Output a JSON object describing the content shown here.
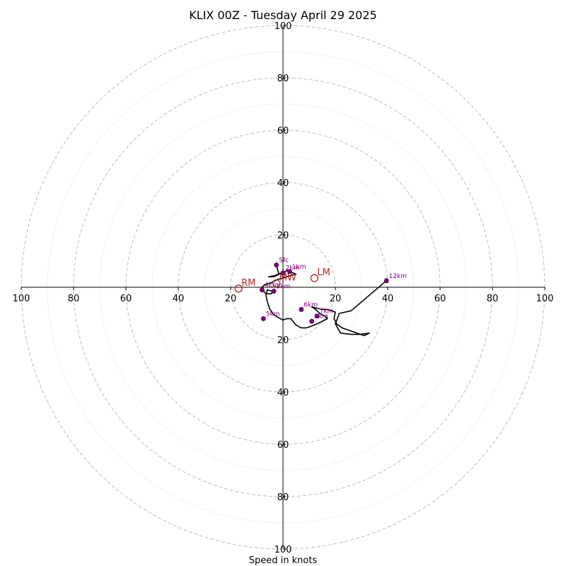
{
  "chart_data": {
    "type": "scatter",
    "subtype": "hodograph",
    "title": "KLIX 00Z - Tuesday April 29 2025",
    "xlabel": "Speed in knots",
    "ylabel": "",
    "xlim": [
      -100,
      100
    ],
    "ylim": [
      -100,
      100
    ],
    "grid": true,
    "ring_major": [
      20,
      40,
      60,
      80,
      100
    ],
    "ring_minor": [
      10,
      30,
      50,
      70,
      90
    ],
    "x_tick_labels": [
      "100",
      "80",
      "60",
      "40",
      "20",
      "20",
      "40",
      "60",
      "80",
      "100"
    ],
    "y_tick_labels": [
      "100",
      "80",
      "60",
      "40",
      "20",
      "20",
      "40",
      "60",
      "80",
      "100"
    ],
    "colors": {
      "trace": "#000000",
      "heights": "#800080",
      "motion": "#b22222",
      "grid": "#bbbbbb"
    },
    "trace": {
      "u": [
        -2.5,
        -2.2,
        -1.5,
        -3.5,
        -5.5,
        -3,
        -0.5,
        1,
        1.5,
        2.5,
        5,
        3,
        0,
        -2,
        -3,
        -5,
        -7,
        -8,
        -8,
        -7,
        -6,
        -4.5,
        -4,
        -6,
        -6.5,
        -6,
        -5,
        -3.5,
        -1,
        0,
        1.5,
        3,
        5,
        7,
        9,
        10.5,
        13,
        15,
        17,
        16,
        14,
        12.5,
        11,
        13,
        15,
        17,
        20,
        19.5,
        20.5,
        22.5,
        31,
        33,
        29.5,
        26,
        22,
        20,
        21.5,
        26,
        39.5
      ],
      "v": [
        8.5,
        7,
        5,
        4,
        4,
        4.5,
        5.5,
        6,
        6.5,
        6,
        5,
        4.5,
        3.5,
        3,
        2.5,
        1.5,
        1,
        0,
        -1,
        -2,
        -2.5,
        -2.5,
        -1.5,
        -1,
        -3,
        -5.5,
        -8.5,
        -10.5,
        -12,
        -12.5,
        -12,
        -12,
        -14.5,
        -15.5,
        -15.5,
        -15,
        -14,
        -13,
        -12,
        -11,
        -10,
        -8.5,
        -7.5,
        -8,
        -8.5,
        -8.5,
        -9.5,
        -12,
        -14,
        -15.5,
        -18.5,
        -17.5,
        -18,
        -18,
        -17.5,
        -14,
        -10,
        -9,
        2.5
      ]
    },
    "height_points": [
      {
        "label": "Sfc",
        "u": -2.5,
        "v": 8.5
      },
      {
        "label": "1km",
        "u": 2.5,
        "v": 6
      },
      {
        "label": "2km",
        "u": 0,
        "v": 5.5
      },
      {
        "label": "3km",
        "u": -3.5,
        "v": -1.5
      },
      {
        "label": "4km",
        "u": -8,
        "v": -1
      },
      {
        "label": "5km",
        "u": -7.5,
        "v": -12
      },
      {
        "label": "6km",
        "u": 7,
        "v": -8.5
      },
      {
        "label": "7km",
        "u": 13,
        "v": -11
      },
      {
        "label": "8km",
        "u": 11,
        "v": -13
      },
      {
        "label": "12km",
        "u": 39.5,
        "v": 2.5
      }
    ],
    "storm_motions": [
      {
        "label": "RM",
        "u": -17,
        "v": -0.5
      },
      {
        "label": "LM",
        "u": 12,
        "v": 3.5
      },
      {
        "label": "MW",
        "u": -2.5,
        "v": 1.5
      }
    ]
  }
}
